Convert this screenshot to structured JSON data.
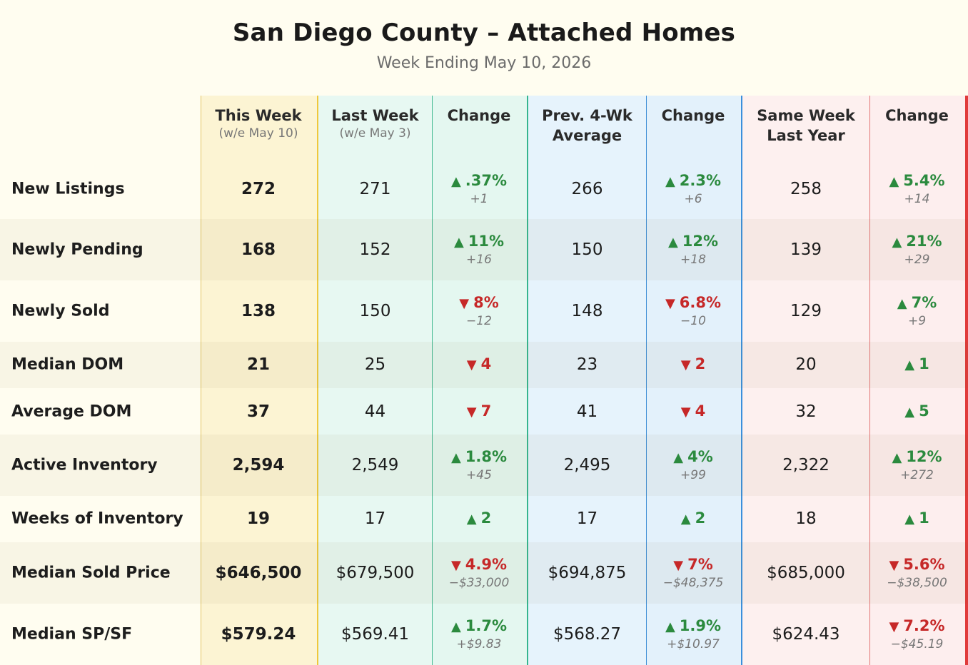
{
  "header": {
    "title": "San Diego County – Attached Homes",
    "subtitle": "Week Ending May 10, 2026"
  },
  "columns": {
    "this_week": "This Week",
    "this_week_sub": "(w/e May 10)",
    "last_week": "Last Week",
    "last_week_sub": "(w/e May 3)",
    "change1": "Change",
    "avg_line1": "Prev. 4-Wk",
    "avg_line2": "Average",
    "change2": "Change",
    "yr_line1": "Same Week",
    "yr_line2": "Last Year",
    "change3": "Change"
  },
  "colors": {
    "up": "#2b8a3e",
    "down": "#c62828"
  },
  "rows": [
    {
      "label": "New Listings",
      "this_week": "272",
      "last_week": "271",
      "chg1": {
        "dir": "up",
        "pct": ".37%",
        "abs": "+1"
      },
      "avg": "266",
      "chg2": {
        "dir": "up",
        "pct": "2.3%",
        "abs": "+6"
      },
      "last_year": "258",
      "chg3": {
        "dir": "up",
        "pct": "5.4%",
        "abs": "+14"
      }
    },
    {
      "label": "Newly Pending",
      "this_week": "168",
      "last_week": "152",
      "chg1": {
        "dir": "up",
        "pct": "11%",
        "abs": "+16"
      },
      "avg": "150",
      "chg2": {
        "dir": "up",
        "pct": "12%",
        "abs": "+18"
      },
      "last_year": "139",
      "chg3": {
        "dir": "up",
        "pct": "21%",
        "abs": "+29"
      }
    },
    {
      "label": "Newly Sold",
      "this_week": "138",
      "last_week": "150",
      "chg1": {
        "dir": "down",
        "pct": "8%",
        "abs": "−12"
      },
      "avg": "148",
      "chg2": {
        "dir": "down",
        "pct": "6.8%",
        "abs": "−10"
      },
      "last_year": "129",
      "chg3": {
        "dir": "up",
        "pct": "7%",
        "abs": "+9"
      }
    },
    {
      "label": "Median DOM",
      "this_week": "21",
      "last_week": "25",
      "chg1": {
        "dir": "down",
        "pct": "4",
        "abs": ""
      },
      "avg": "23",
      "chg2": {
        "dir": "down",
        "pct": "2",
        "abs": ""
      },
      "last_year": "20",
      "chg3": {
        "dir": "up",
        "pct": "1",
        "abs": ""
      }
    },
    {
      "label": "Average DOM",
      "this_week": "37",
      "last_week": "44",
      "chg1": {
        "dir": "down",
        "pct": "7",
        "abs": ""
      },
      "avg": "41",
      "chg2": {
        "dir": "down",
        "pct": "4",
        "abs": ""
      },
      "last_year": "32",
      "chg3": {
        "dir": "up",
        "pct": "5",
        "abs": ""
      }
    },
    {
      "label": "Active Inventory",
      "this_week": "2,594",
      "last_week": "2,549",
      "chg1": {
        "dir": "up",
        "pct": "1.8%",
        "abs": "+45"
      },
      "avg": "2,495",
      "chg2": {
        "dir": "up",
        "pct": "4%",
        "abs": "+99"
      },
      "last_year": "2,322",
      "chg3": {
        "dir": "up",
        "pct": "12%",
        "abs": "+272"
      }
    },
    {
      "label": "Weeks of Inventory",
      "this_week": "19",
      "last_week": "17",
      "chg1": {
        "dir": "up",
        "pct": "2",
        "abs": ""
      },
      "avg": "17",
      "chg2": {
        "dir": "up",
        "pct": "2",
        "abs": ""
      },
      "last_year": "18",
      "chg3": {
        "dir": "up",
        "pct": "1",
        "abs": ""
      }
    },
    {
      "label": "Median Sold Price",
      "this_week": "$646,500",
      "last_week": "$679,500",
      "chg1": {
        "dir": "down",
        "pct": "4.9%",
        "abs": "−$33,000"
      },
      "avg": "$694,875",
      "chg2": {
        "dir": "down",
        "pct": "7%",
        "abs": "−$48,375"
      },
      "last_year": "$685,000",
      "chg3": {
        "dir": "down",
        "pct": "5.6%",
        "abs": "−$38,500"
      }
    },
    {
      "label": "Median SP/SF",
      "this_week": "$579.24",
      "last_week": "$569.41",
      "chg1": {
        "dir": "up",
        "pct": "1.7%",
        "abs": "+$9.83"
      },
      "avg": "$568.27",
      "chg2": {
        "dir": "up",
        "pct": "1.9%",
        "abs": "+$10.97"
      },
      "last_year": "$624.43",
      "chg3": {
        "dir": "down",
        "pct": "7.2%",
        "abs": "−$45.19"
      }
    }
  ]
}
